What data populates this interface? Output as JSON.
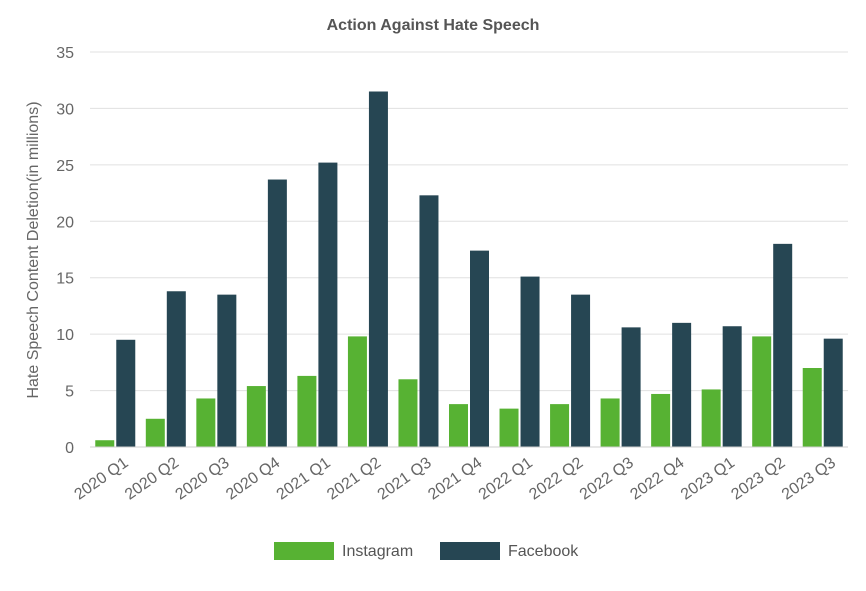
{
  "chart_data": {
    "type": "bar",
    "title": "Action Against Hate Speech",
    "xlabel": "",
    "ylabel": "Hate Speech Content Deletion(in millions)",
    "ylim": [
      0,
      35
    ],
    "yticks": [
      0,
      5,
      10,
      15,
      20,
      25,
      30,
      35
    ],
    "grid": true,
    "legend": "bottom",
    "categories": [
      "2020 Q1",
      "2020 Q2",
      "2020 Q3",
      "2020 Q4",
      "2021 Q1",
      "2021 Q2",
      "2021 Q3",
      "2021 Q4",
      "2022 Q1",
      "2022 Q2",
      "2022 Q3",
      "2022 Q4",
      "2023 Q1",
      "2023 Q2",
      "2023 Q3"
    ],
    "series": [
      {
        "name": "Instagram",
        "color": "#57b233",
        "values": [
          0.6,
          2.5,
          4.3,
          5.4,
          6.3,
          9.8,
          6.0,
          3.8,
          3.4,
          3.8,
          4.3,
          4.7,
          5.1,
          9.8,
          7.0
        ]
      },
      {
        "name": "Facebook",
        "color": "#264653",
        "values": [
          9.5,
          13.8,
          13.5,
          23.7,
          25.2,
          31.5,
          22.3,
          17.4,
          15.1,
          13.5,
          10.6,
          11.0,
          10.7,
          18.0,
          9.6
        ]
      }
    ]
  }
}
